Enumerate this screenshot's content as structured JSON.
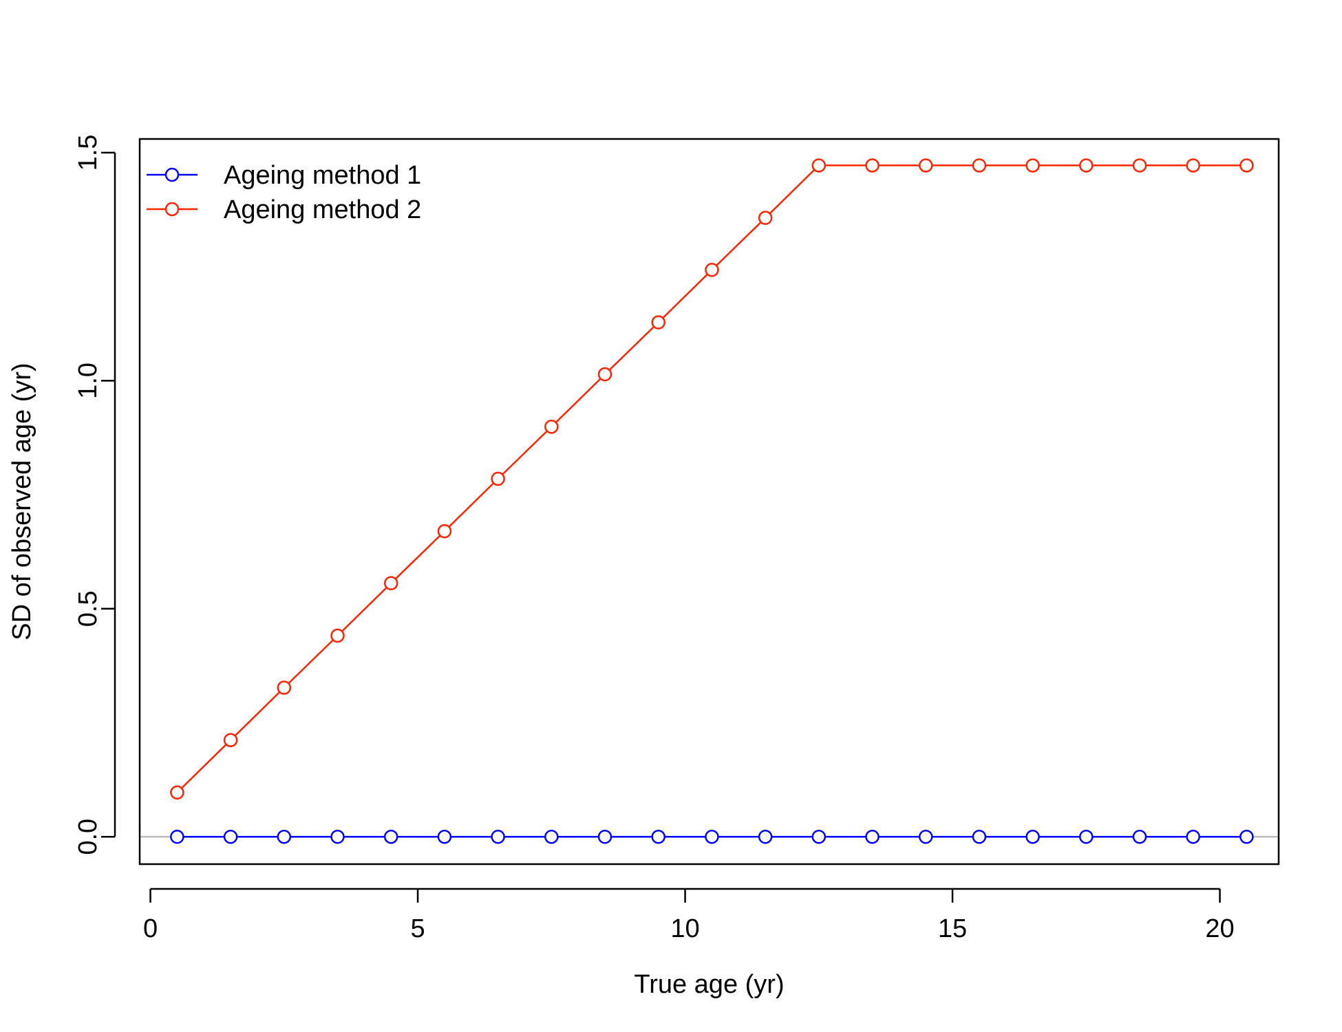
{
  "chart_data": {
    "type": "line",
    "title": "",
    "xlabel": "True age (yr)",
    "ylabel": "SD of observed age (yr)",
    "xlim": [
      -0.2,
      21.1
    ],
    "ylim": [
      -0.06,
      1.53
    ],
    "x_ticks": [
      0,
      5,
      10,
      15,
      20
    ],
    "x_tick_labels": [
      "0",
      "5",
      "10",
      "15",
      "20"
    ],
    "y_ticks": [
      0.0,
      0.5,
      1.0,
      1.5
    ],
    "y_tick_labels": [
      "0.0",
      "0.5",
      "1.0",
      "1.5"
    ],
    "grid": false,
    "legend": {
      "position": "top-left",
      "frame": false
    },
    "reference_line": {
      "y": 0,
      "color": "#bebebe"
    },
    "x": [
      0.5,
      1.5,
      2.5,
      3.5,
      4.5,
      5.5,
      6.5,
      7.5,
      8.5,
      9.5,
      10.5,
      11.5,
      12.5,
      13.5,
      14.5,
      15.5,
      16.5,
      17.5,
      18.5,
      19.5,
      20.5
    ],
    "series": [
      {
        "name": "Ageing method 1",
        "color": "#0000ff",
        "marker": "open-circle",
        "values": [
          0,
          0,
          0,
          0,
          0,
          0,
          0,
          0,
          0,
          0,
          0,
          0,
          0,
          0,
          0,
          0,
          0,
          0,
          0,
          0,
          0
        ]
      },
      {
        "name": "Ageing method 2",
        "color": "#ff2500",
        "marker": "open-circle",
        "values": [
          0.097,
          0.212,
          0.327,
          0.441,
          0.556,
          0.67,
          0.785,
          0.899,
          1.014,
          1.128,
          1.243,
          1.357,
          1.472,
          1.472,
          1.472,
          1.472,
          1.472,
          1.472,
          1.472,
          1.472,
          1.472
        ]
      }
    ]
  }
}
